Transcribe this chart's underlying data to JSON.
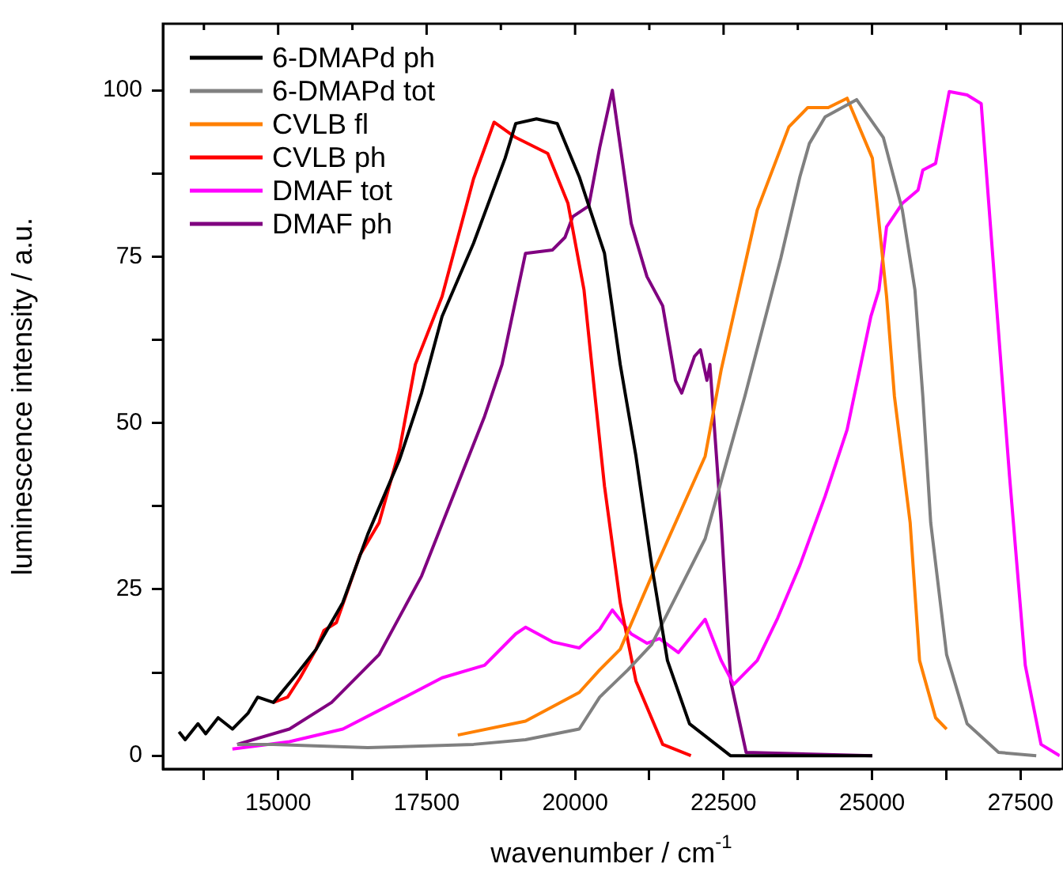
{
  "chart_data": {
    "type": "line",
    "xlabel": "wavenumber / cm$^{-1}$",
    "ylabel": "luminescence intensity / a.u.",
    "xlim": [
      13060,
      28160
    ],
    "ylim": [
      -2,
      110
    ],
    "xticks": [
      {
        "value": 13750,
        "label": null
      },
      15000,
      {
        "value": 16250,
        "label": null
      },
      17500,
      {
        "value": 18750,
        "label": null
      },
      20000,
      {
        "value": 21250,
        "label": null
      },
      22500,
      {
        "value": 23750,
        "label": null
      },
      25000,
      {
        "value": 26250,
        "label": null
      },
      27500
    ],
    "yticks": [
      0,
      {
        "value": 12.5,
        "label": null
      },
      25,
      {
        "value": 37.5,
        "label": null
      },
      50,
      {
        "value": 62.5,
        "label": null
      },
      75,
      {
        "value": 87.5,
        "label": null
      },
      100
    ],
    "grid": false,
    "legend": "top left",
    "marker": "none",
    "line_style": "solid",
    "series": [
      {
        "name": "6-DMAPd ph",
        "color": "#000000",
        "x": [
          13330,
          13435,
          13650,
          13780,
          13990,
          14230,
          14495,
          14655,
          14920,
          15290,
          15640,
          16088,
          16510,
          17044,
          17415,
          17760,
          18290,
          18822,
          19000,
          19350,
          19700,
          20070,
          20495,
          20760,
          21025,
          21290,
          21555,
          21927,
          22615,
          25005
        ],
        "values": [
          3.6,
          2.4,
          4.8,
          3.3,
          5.7,
          4,
          6.4,
          8.8,
          8,
          12,
          16,
          23,
          33.3,
          44.5,
          54.5,
          66,
          77,
          89.8,
          95,
          95.7,
          95,
          87,
          75.5,
          58.8,
          45,
          28.6,
          14.3,
          4.8,
          0,
          0
        ]
      },
      {
        "name": "6-DMAPd tot",
        "color": "#808080",
        "x": [
          14310,
          14920,
          16510,
          18290,
          19165,
          20070,
          20415,
          20890,
          21290,
          22190,
          22858,
          23465,
          23785,
          23945,
          24210,
          24740,
          25190,
          25510,
          25722,
          25855,
          25988,
          26255,
          26600,
          27130,
          27765
        ],
        "values": [
          1.7,
          1.7,
          1.2,
          1.7,
          2.4,
          4,
          8.8,
          12.9,
          16.7,
          32.6,
          54,
          74.8,
          87,
          92,
          96,
          98.6,
          92.9,
          82,
          70,
          54,
          35,
          15.2,
          4.8,
          0.5,
          0
        ]
      },
      {
        "name": "CVLB fl",
        "color": "#ff8000",
        "x": [
          18025,
          19165,
          20070,
          20415,
          20760,
          21290,
          22190,
          22460,
          23067,
          23600,
          23918,
          24263,
          24580,
          25005,
          25245,
          25377,
          25642,
          25800,
          26070,
          26255
        ],
        "values": [
          3.1,
          5.2,
          9.5,
          12.9,
          16,
          27,
          45,
          58,
          82,
          94.5,
          97.4,
          97.4,
          98.8,
          89.8,
          69,
          54,
          35,
          14.3,
          5.7,
          4
        ]
      },
      {
        "name": "CVLB ph",
        "color": "#ff0000",
        "x": [
          14920,
          15160,
          15370,
          15640,
          15770,
          15980,
          16170,
          16380,
          16700,
          17044,
          17310,
          17760,
          18290,
          18636,
          19000,
          19540,
          19880,
          20150,
          20330,
          20495,
          20760,
          21025,
          21475,
          21950
        ],
        "values": [
          8,
          8.8,
          11.7,
          16,
          18.8,
          20,
          24.8,
          30.2,
          35,
          46,
          58.8,
          69,
          86.7,
          95.2,
          92.9,
          90.5,
          83,
          70,
          54.5,
          40.5,
          23,
          11.2,
          1.7,
          0
        ]
      },
      {
        "name": "DMAF tot",
        "color": "#ff00ff",
        "x": [
          14230,
          15190,
          16090,
          16960,
          17760,
          18476,
          19000,
          19165,
          19620,
          20070,
          20415,
          20627,
          20945,
          21210,
          21420,
          21740,
          22190,
          22460,
          22670,
          23067,
          23412,
          23785,
          24210,
          24580,
          24980,
          25116,
          25245,
          25510,
          25775,
          25855,
          26070,
          26300,
          26600,
          26838,
          27050,
          27315,
          27580,
          27845,
          28160
        ],
        "values": [
          1,
          2.1,
          4,
          8,
          11.7,
          13.6,
          18.3,
          19.3,
          17.1,
          16.2,
          19,
          21.9,
          18.3,
          16.9,
          17.6,
          15.5,
          20.5,
          14.3,
          10.7,
          14.3,
          20.7,
          28.6,
          39,
          49,
          66,
          70,
          79.5,
          83,
          85,
          88,
          89,
          99.8,
          99.3,
          98,
          73,
          42,
          13.6,
          1.7,
          0
        ]
      },
      {
        "name": "DMAF ph",
        "color": "#800080",
        "x": [
          14310,
          15190,
          15900,
          16700,
          17415,
          17945,
          18476,
          18770,
          19165,
          19620,
          19830,
          19960,
          20230,
          20415,
          20627,
          20945,
          21210,
          21475,
          21690,
          21795,
          22010,
          22110,
          22220,
          22270,
          22460,
          22620,
          22880,
          25005
        ],
        "values": [
          1.7,
          4,
          8,
          15.2,
          27,
          39,
          51,
          58.8,
          75.5,
          76,
          77.9,
          81,
          82.6,
          91.4,
          100,
          80,
          72,
          67.6,
          56.4,
          54.5,
          60,
          61,
          56.4,
          58.8,
          35,
          11.2,
          0.5,
          0
        ]
      }
    ]
  }
}
